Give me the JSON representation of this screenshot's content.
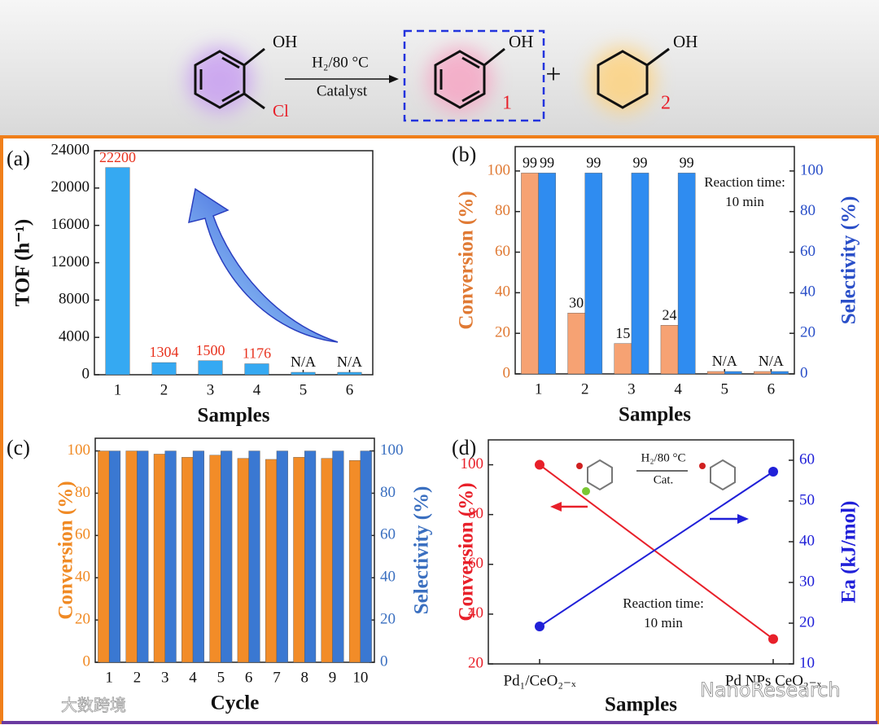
{
  "scheme": {
    "reactant_oh": "OH",
    "reactant_cl": "Cl",
    "conditions": "H₂/80 °C",
    "catalyst": "Catalyst",
    "product1_oh": "OH",
    "product1_label": "1",
    "plus": "+",
    "product2_oh": "OH",
    "product2_label": "2"
  },
  "watermarks": [
    "大数跨境",
    "NanoResearch"
  ],
  "chart_data": [
    {
      "type": "bar",
      "panel": "(a)",
      "ylabel": "TOF (h⁻¹)",
      "xlabel": "Samples",
      "categories": [
        "1",
        "2",
        "3",
        "4",
        "5",
        "6"
      ],
      "values": [
        22200,
        1304,
        1500,
        1176,
        null,
        null
      ],
      "value_labels": [
        "22200",
        "1304",
        "1500",
        "1176",
        "N/A",
        "N/A"
      ],
      "color": "#35a9f2",
      "label_color": "#e8321e",
      "ylim": [
        0,
        24000
      ],
      "yticks": [
        0,
        4000,
        8000,
        12000,
        16000,
        20000,
        24000
      ]
    },
    {
      "type": "bar",
      "panel": "(b)",
      "ylabel": "Conversion (%)",
      "y2label": "Selectivity (%)",
      "xlabel": "Samples",
      "ylabel_color": "#e07a34",
      "y2label_color": "#2a4fc8",
      "annotations": [
        "Reaction time:",
        "10 min"
      ],
      "categories": [
        "1",
        "2",
        "3",
        "4",
        "5",
        "6"
      ],
      "series": [
        {
          "color": "#f6a273",
          "values": [
            99,
            30,
            15,
            24,
            null,
            null
          ],
          "value_labels": [
            "99",
            "30",
            "15",
            "24",
            "N/A",
            "N/A"
          ]
        },
        {
          "color": "#2f8cf0",
          "axis": "y2",
          "values": [
            99,
            99,
            99,
            99,
            null,
            null
          ]
        }
      ],
      "ylim": [
        0,
        112
      ],
      "yticks": [
        0,
        20,
        40,
        60,
        80,
        100
      ],
      "y2lim": [
        0,
        112
      ],
      "y2ticks": [
        0,
        20,
        40,
        60,
        80,
        100
      ]
    },
    {
      "type": "bar",
      "panel": "(c)",
      "ylabel": "Conversion (%)",
      "y2label": "Selectivity (%)",
      "xlabel": "Cycle",
      "ylabel_color": "#f08a24",
      "y2label_color": "#3a6fc0",
      "categories": [
        "1",
        "2",
        "3",
        "4",
        "5",
        "6",
        "7",
        "8",
        "9",
        "10"
      ],
      "series": [
        {
          "color": "#f28c28",
          "values": [
            100,
            100,
            98.5,
            97,
            98,
            96.5,
            96,
            97,
            96.5,
            95.5
          ]
        },
        {
          "color": "#3a78d2",
          "axis": "y2",
          "values": [
            100,
            100,
            100,
            100,
            100,
            100,
            100,
            100,
            100,
            100
          ]
        }
      ],
      "ylim": [
        0,
        106
      ],
      "yticks": [
        0,
        20,
        40,
        60,
        80,
        100
      ],
      "y2lim": [
        0,
        106
      ],
      "y2ticks": [
        0,
        20,
        40,
        60,
        80,
        100
      ]
    },
    {
      "type": "line",
      "panel": "(d)",
      "ylabel": "Conversion (%)",
      "y2label": "Ea (kJ/mol)",
      "xlabel": "Samples",
      "ylabel_color": "#e8202a",
      "y2label_color": "#2020d8",
      "annotations": [
        "Reaction time:",
        "10 min"
      ],
      "inset": [
        "H₂/80 °C",
        "Cat."
      ],
      "categories": [
        "Pd₁/CeO₂₋ₓ",
        "Pd NPs CeO₂₋ₓ"
      ],
      "series": [
        {
          "color": "#e8202a",
          "values": [
            100,
            30
          ]
        },
        {
          "color": "#2020d8",
          "axis": "y2",
          "values": [
            19.2,
            57.2
          ]
        }
      ],
      "ylim": [
        20,
        110
      ],
      "yticks": [
        20,
        40,
        60,
        80,
        100
      ],
      "y2lim": [
        10,
        65
      ],
      "y2ticks": [
        10,
        20,
        30,
        40,
        50,
        60
      ]
    }
  ]
}
